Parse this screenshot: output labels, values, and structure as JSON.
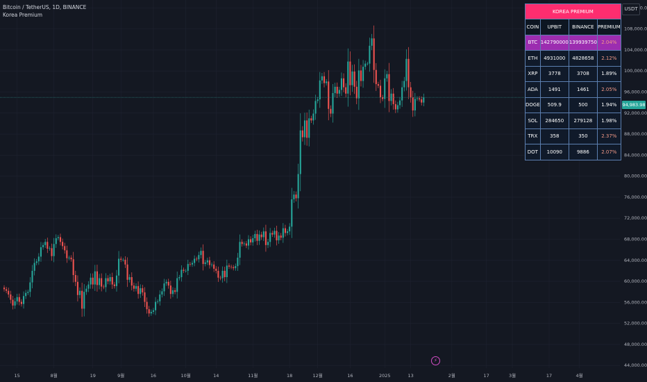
{
  "legend": {
    "symbol_line": "Bitcoin / TetherUS, 1D, BINANCE",
    "indicator_line": "Korea Premium"
  },
  "quote_currency": "USDT",
  "current_price_label": "94,983.98",
  "colors": {
    "up": "#26a69a",
    "down": "#ef5350",
    "title_bg": "#ff2d6f",
    "highlight_row": "#9c2db0"
  },
  "premium_table": {
    "title": "KOREA PREMIUM",
    "headers": [
      "COIN",
      "UPBIT",
      "BINANCE",
      "PREMIUM"
    ],
    "rows": [
      {
        "coin": "BTC",
        "upbit": "142790000",
        "binance": "139939750",
        "premium": "2.04%",
        "highlight": true
      },
      {
        "coin": "ETH",
        "upbit": "4931000",
        "binance": "4828658",
        "premium": "2.12%",
        "highlight": false
      },
      {
        "coin": "XRP",
        "upbit": "3778",
        "binance": "3708",
        "premium": "1.89%",
        "highlight": false
      },
      {
        "coin": "ADA",
        "upbit": "1491",
        "binance": "1461",
        "premium": "2.05%",
        "highlight": false
      },
      {
        "coin": "DOGE",
        "upbit": "509.9",
        "binance": "500",
        "premium": "1.94%",
        "highlight": false
      },
      {
        "coin": "SOL",
        "upbit": "284650",
        "binance": "279128",
        "premium": "1.98%",
        "highlight": false
      },
      {
        "coin": "TRX",
        "upbit": "358",
        "binance": "350",
        "premium": "2.37%",
        "highlight": false
      },
      {
        "coin": "DOT",
        "upbit": "10090",
        "binance": "9886",
        "premium": "2.07%",
        "highlight": false
      }
    ]
  },
  "chart_data": {
    "type": "candlestick",
    "title": "Bitcoin / TetherUS, 1D, BINANCE",
    "ylim": [
      43500,
      113500
    ],
    "y_ticks": [
      44000,
      48000,
      52000,
      56000,
      60000,
      64000,
      68000,
      72000,
      76000,
      80000,
      84000,
      88000,
      92000,
      96000,
      100000,
      104000,
      108000,
      112000
    ],
    "y_tick_labels": [
      "44,000.00",
      "48,000.00",
      "52,000.00",
      "56,000.00",
      "60,000.00",
      "64,000.00",
      "68,000.00",
      "72,000.00",
      "76,000.00",
      "80,000.00",
      "84,000.00",
      "88,000.00",
      "92,000.00",
      "96,000.00",
      "100,000.00",
      "104,000.00",
      "108,000.00",
      "112,000.00"
    ],
    "x_tick_labels": [
      {
        "label": "15",
        "index": 6
      },
      {
        "label": "8월",
        "index": 23
      },
      {
        "label": "19",
        "index": 41
      },
      {
        "label": "9월",
        "index": 54
      },
      {
        "label": "16",
        "index": 69
      },
      {
        "label": "10월",
        "index": 84
      },
      {
        "label": "14",
        "index": 98
      },
      {
        "label": "11월",
        "index": 115
      },
      {
        "label": "18",
        "index": 132
      },
      {
        "label": "12월",
        "index": 145
      },
      {
        "label": "16",
        "index": 160
      },
      {
        "label": "2025",
        "index": 176
      },
      {
        "label": "13",
        "index": 188
      },
      {
        "label": "2월",
        "index": 207
      },
      {
        "label": "17",
        "index": 223
      },
      {
        "label": "3월",
        "index": 235
      },
      {
        "label": "17",
        "index": 252
      },
      {
        "label": "4월",
        "index": 266
      }
    ],
    "current_price": 94983.98,
    "series": [
      {
        "name": "BTCUSDT",
        "closes": [
          58500,
          58200,
          57500,
          56500,
          55400,
          56200,
          57000,
          56100,
          55700,
          57200,
          57800,
          58000,
          59800,
          62000,
          63500,
          63800,
          64700,
          66500,
          66900,
          67500,
          66200,
          66300,
          64800,
          67100,
          68200,
          68400,
          67500,
          66700,
          65900,
          64400,
          64500,
          64200,
          61200,
          59900,
          57400,
          58200,
          54800,
          58000,
          58600,
          59400,
          60700,
          59400,
          61900,
          59300,
          60600,
          59000,
          58900,
          60600,
          60000,
          60800,
          59400,
          59100,
          61100,
          64300,
          64100,
          64100,
          63200,
          60300,
          60800,
          59200,
          58600,
          59100,
          57600,
          58700,
          57900,
          56100,
          54700,
          53900,
          54200,
          54500,
          56100,
          56200,
          57500,
          58100,
          59600,
          59900,
          59200,
          57600,
          58300,
          58000,
          60600,
          60800,
          62200,
          62000,
          62000,
          63300,
          63200,
          63500,
          64300,
          64200,
          65000,
          65800,
          63300,
          63600,
          64000,
          63100,
          63200,
          62400,
          62000,
          60700,
          60600,
          62000,
          60800,
          63000,
          62800,
          62700,
          62500,
          62900,
          64500,
          67500,
          67100,
          67200,
          66800,
          68000,
          67400,
          68200,
          69000,
          67700,
          68900,
          68400,
          69500,
          66900,
          67500,
          69200,
          68900,
          69600,
          67800,
          68700,
          68300,
          70100,
          69200,
          69500,
          70400,
          75600,
          76500,
          75800,
          80400,
          88700,
          87400,
          90600,
          87300,
          91000,
          90600,
          91900,
          94300,
          94600,
          98200,
          99000,
          97700,
          98000,
          92800,
          91900,
          95800,
          97000,
          95700,
          96400,
          98600,
          96900,
          95700,
          101800,
          97300,
          99900,
          97000,
          94800,
          100100,
          98100,
          100800,
          101400,
          101400,
          104800,
          106200,
          100200,
          97500,
          97200,
          95000,
          94700,
          98600,
          99400,
          94300,
          95700,
          93700,
          92700,
          93500,
          94400,
          96900,
          98100,
          102300,
          96900,
          95000,
          92500,
          94700,
          94800,
          94600,
          94000,
          95000
        ]
      }
    ]
  }
}
